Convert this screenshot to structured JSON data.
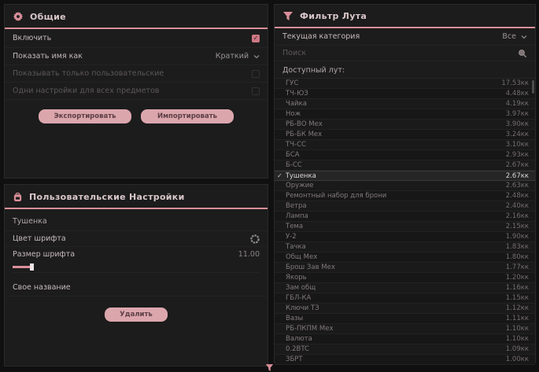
{
  "colors": {
    "accent_pink": "#d98f99",
    "button_pink": "#dca6ad",
    "panel_bg": "#1c1c1c",
    "page_bg": "#101010",
    "checkbox_checked": "#cc7783"
  },
  "icons": {
    "general_header": "gear-icon",
    "custom_header": "backpack-icon",
    "filter_header": "funnel-icon",
    "search": "search-icon",
    "font_color": "color-wheel-icon",
    "selected_row": "checkmark-icon",
    "dropdown": "chevron-down-icon",
    "bottom": "funnel-handle-icon"
  },
  "general_panel": {
    "title": "Общие",
    "rows": [
      {
        "label": "Включить",
        "control": "checkbox",
        "checked": true,
        "disabled": false
      },
      {
        "label": "Показать имя как",
        "control": "select",
        "value": "Краткий",
        "disabled": false
      },
      {
        "label": "Показывать только пользовательские",
        "control": "checkbox",
        "checked": false,
        "disabled": true
      },
      {
        "label": "Одни настройки для всех предметов",
        "control": "checkbox",
        "checked": false,
        "disabled": true
      }
    ],
    "export_label": "Экспортировать",
    "import_label": "Импортировать"
  },
  "custom_panel": {
    "title": "Пользовательские Настройки",
    "item_name": "Тушенка",
    "font_color_label": "Цвет шрифта",
    "font_size_label": "Размер шрифта",
    "font_size_value": "11.00",
    "custom_name_label": "Свое название",
    "custom_name_value": "",
    "delete_label": "Удалить"
  },
  "filter_panel": {
    "title": "Фильтр Лута",
    "category_label": "Текущая категория",
    "category_value": "Все",
    "search_placeholder": "Поиск",
    "list_label": "Доступный лут:",
    "items": [
      {
        "name": "ГУС",
        "value": "17.53кк",
        "selected": false
      },
      {
        "name": "ТЧ-ЮЗ",
        "value": "4.48кк",
        "selected": false
      },
      {
        "name": "Чайка",
        "value": "4.19кк",
        "selected": false
      },
      {
        "name": "Нож",
        "value": "3.97кк",
        "selected": false
      },
      {
        "name": "РБ-ВО Мех",
        "value": "3.90кк",
        "selected": false
      },
      {
        "name": "РБ-БК Мех",
        "value": "3.24кк",
        "selected": false
      },
      {
        "name": "ТЧ-СС",
        "value": "3.10кк",
        "selected": false
      },
      {
        "name": "БСА",
        "value": "2.93кк",
        "selected": false
      },
      {
        "name": "Б-СС",
        "value": "2.67кк",
        "selected": false
      },
      {
        "name": "Тушенка",
        "value": "2.67кк",
        "selected": true
      },
      {
        "name": "Оружие",
        "value": "2.63кк",
        "selected": false
      },
      {
        "name": "Ремонтный набор для брони",
        "value": "2.48кк",
        "selected": false
      },
      {
        "name": "Ветра",
        "value": "2.40кк",
        "selected": false
      },
      {
        "name": "Лампа",
        "value": "2.16кк",
        "selected": false
      },
      {
        "name": "Тема",
        "value": "2.15кк",
        "selected": false
      },
      {
        "name": "У-2",
        "value": "1.90кк",
        "selected": false
      },
      {
        "name": "Тачка",
        "value": "1.83кк",
        "selected": false
      },
      {
        "name": "Общ Мех",
        "value": "1.80кк",
        "selected": false
      },
      {
        "name": "Брош Зав Мех",
        "value": "1.77кк",
        "selected": false
      },
      {
        "name": "Якорь",
        "value": "1.20кк",
        "selected": false
      },
      {
        "name": "Зам общ",
        "value": "1.16кк",
        "selected": false
      },
      {
        "name": "ГБЛ-КА",
        "value": "1.15кк",
        "selected": false
      },
      {
        "name": "Ключи ТЗ",
        "value": "1.12кк",
        "selected": false
      },
      {
        "name": "Вазы",
        "value": "1.11кк",
        "selected": false
      },
      {
        "name": "РБ-ПКПМ Мех",
        "value": "1.10кк",
        "selected": false
      },
      {
        "name": "Валюта",
        "value": "1.10кк",
        "selected": false
      },
      {
        "name": "0.2BTC",
        "value": "1.09кк",
        "selected": false
      },
      {
        "name": "ЗБРТ",
        "value": "1.00кк",
        "selected": false
      }
    ]
  }
}
